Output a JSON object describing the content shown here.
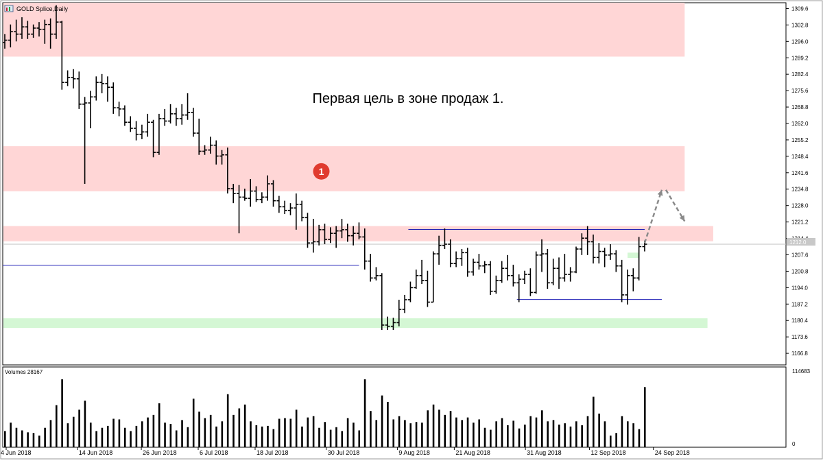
{
  "title": "GOLD Splice,Daily",
  "annotation": "Первая цель в зоне продаж 1.",
  "marker_label": "1",
  "current_price_label": "1212.0",
  "volume_label": "Volumes 28167",
  "volume_axis_labels": [
    "114683",
    "0"
  ],
  "colors": {
    "up_down_bar": "#000000",
    "sell_zone": "#ffd6d6",
    "buy_zone": "#d4f7d4",
    "level_line": "#1f1fb4",
    "marker": "#e03b2f",
    "arrow": "#8a8a8a",
    "grid_price_line": "#c0c0c0"
  },
  "chart_data": {
    "type": "ohlc",
    "title": "GOLD Splice,Daily",
    "price_axis": {
      "ylim": [
        1162.0,
        1312.0
      ],
      "ticks": [
        1309.6,
        1302.8,
        1296.0,
        1289.2,
        1282.4,
        1275.6,
        1268.8,
        1262.0,
        1255.2,
        1248.4,
        1241.6,
        1234.8,
        1228.0,
        1221.2,
        1214.4,
        1207.6,
        1200.8,
        1194.0,
        1187.2,
        1180.4,
        1173.6,
        1166.8
      ]
    },
    "x_labels": [
      "4 Jun 2018",
      "14 Jun 2018",
      "26 Jun 2018",
      "6 Jul 2018",
      "18 Jul 2018",
      "30 Jul 2018",
      "9 Aug 2018",
      "21 Aug 2018",
      "31 Aug 2018",
      "12 Sep 2018",
      "24 Sep 2018"
    ],
    "bars": [
      {
        "o": 1295.5,
        "h": 1299.0,
        "l": 1293.0,
        "c": 1296.5,
        "v": 25
      },
      {
        "o": 1296.5,
        "h": 1303.0,
        "l": 1293.5,
        "c": 1300.0,
        "v": 38
      },
      {
        "o": 1300.0,
        "h": 1305.0,
        "l": 1296.0,
        "c": 1299.0,
        "v": 30
      },
      {
        "o": 1299.0,
        "h": 1306.0,
        "l": 1297.0,
        "c": 1302.0,
        "v": 26
      },
      {
        "o": 1302.0,
        "h": 1304.5,
        "l": 1297.0,
        "c": 1299.0,
        "v": 23
      },
      {
        "o": 1299.0,
        "h": 1303.0,
        "l": 1297.5,
        "c": 1301.5,
        "v": 22
      },
      {
        "o": 1301.5,
        "h": 1304.0,
        "l": 1298.0,
        "c": 1301.0,
        "v": 18
      },
      {
        "o": 1301.0,
        "h": 1305.0,
        "l": 1295.0,
        "c": 1303.0,
        "v": 30
      },
      {
        "o": 1303.0,
        "h": 1305.5,
        "l": 1293.0,
        "c": 1299.0,
        "v": 42
      },
      {
        "o": 1299.0,
        "h": 1311.0,
        "l": 1297.0,
        "c": 1304.0,
        "v": 65
      },
      {
        "o": 1304.0,
        "h": 1304.5,
        "l": 1276.0,
        "c": 1279.0,
        "v": 105
      },
      {
        "o": 1279.0,
        "h": 1284.0,
        "l": 1277.5,
        "c": 1281.0,
        "v": 37
      },
      {
        "o": 1281.0,
        "h": 1284.5,
        "l": 1276.5,
        "c": 1280.5,
        "v": 47
      },
      {
        "o": 1280.5,
        "h": 1283.5,
        "l": 1268.0,
        "c": 1270.0,
        "v": 58
      },
      {
        "o": 1270.0,
        "h": 1273.0,
        "l": 1237.0,
        "c": 1270.5,
        "v": 72
      },
      {
        "o": 1270.5,
        "h": 1275.5,
        "l": 1260.0,
        "c": 1273.0,
        "v": 38
      },
      {
        "o": 1273.0,
        "h": 1281.5,
        "l": 1271.5,
        "c": 1279.0,
        "v": 25
      },
      {
        "o": 1279.0,
        "h": 1282.5,
        "l": 1274.5,
        "c": 1278.5,
        "v": 30
      },
      {
        "o": 1278.5,
        "h": 1281.5,
        "l": 1271.0,
        "c": 1277.0,
        "v": 33
      },
      {
        "o": 1277.0,
        "h": 1279.0,
        "l": 1266.0,
        "c": 1268.5,
        "v": 44
      },
      {
        "o": 1268.5,
        "h": 1271.0,
        "l": 1265.0,
        "c": 1268.0,
        "v": 43
      },
      {
        "o": 1268.0,
        "h": 1269.5,
        "l": 1261.0,
        "c": 1262.5,
        "v": 30
      },
      {
        "o": 1262.5,
        "h": 1265.0,
        "l": 1258.5,
        "c": 1260.0,
        "v": 25
      },
      {
        "o": 1260.0,
        "h": 1263.0,
        "l": 1255.0,
        "c": 1257.5,
        "v": 33
      },
      {
        "o": 1257.5,
        "h": 1261.5,
        "l": 1255.5,
        "c": 1258.5,
        "v": 40
      },
      {
        "o": 1258.5,
        "h": 1266.0,
        "l": 1256.5,
        "c": 1262.5,
        "v": 46
      },
      {
        "o": 1262.5,
        "h": 1263.5,
        "l": 1248.0,
        "c": 1250.0,
        "v": 50
      },
      {
        "o": 1250.0,
        "h": 1266.0,
        "l": 1249.0,
        "c": 1264.0,
        "v": 68
      },
      {
        "o": 1264.0,
        "h": 1268.0,
        "l": 1261.0,
        "c": 1263.0,
        "v": 38
      },
      {
        "o": 1263.0,
        "h": 1270.0,
        "l": 1262.0,
        "c": 1266.0,
        "v": 36
      },
      {
        "o": 1266.0,
        "h": 1268.5,
        "l": 1261.0,
        "c": 1264.0,
        "v": 26
      },
      {
        "o": 1264.0,
        "h": 1270.0,
        "l": 1261.5,
        "c": 1265.5,
        "v": 42
      },
      {
        "o": 1265.5,
        "h": 1274.5,
        "l": 1263.5,
        "c": 1266.5,
        "v": 31
      },
      {
        "o": 1266.5,
        "h": 1268.5,
        "l": 1256.5,
        "c": 1258.0,
        "v": 75
      },
      {
        "o": 1258.0,
        "h": 1264.0,
        "l": 1249.0,
        "c": 1250.5,
        "v": 55
      },
      {
        "o": 1250.5,
        "h": 1253.0,
        "l": 1249.0,
        "c": 1251.0,
        "v": 45
      },
      {
        "o": 1251.0,
        "h": 1256.5,
        "l": 1249.5,
        "c": 1253.0,
        "v": 50
      },
      {
        "o": 1253.0,
        "h": 1255.0,
        "l": 1245.0,
        "c": 1248.5,
        "v": 32
      },
      {
        "o": 1248.5,
        "h": 1251.0,
        "l": 1245.0,
        "c": 1249.0,
        "v": 40
      },
      {
        "o": 1249.0,
        "h": 1252.0,
        "l": 1233.0,
        "c": 1235.0,
        "v": 82
      },
      {
        "o": 1235.0,
        "h": 1237.0,
        "l": 1229.0,
        "c": 1233.0,
        "v": 50
      },
      {
        "o": 1233.0,
        "h": 1236.5,
        "l": 1216.5,
        "c": 1231.5,
        "v": 60
      },
      {
        "o": 1231.5,
        "h": 1235.0,
        "l": 1230.0,
        "c": 1231.0,
        "v": 66
      },
      {
        "o": 1231.0,
        "h": 1239.0,
        "l": 1227.5,
        "c": 1234.0,
        "v": 40
      },
      {
        "o": 1234.0,
        "h": 1236.0,
        "l": 1229.5,
        "c": 1230.5,
        "v": 34
      },
      {
        "o": 1230.5,
        "h": 1233.5,
        "l": 1229.0,
        "c": 1231.5,
        "v": 32
      },
      {
        "o": 1231.5,
        "h": 1240.5,
        "l": 1230.0,
        "c": 1237.0,
        "v": 33
      },
      {
        "o": 1237.0,
        "h": 1238.5,
        "l": 1227.5,
        "c": 1230.0,
        "v": 28
      },
      {
        "o": 1230.0,
        "h": 1232.0,
        "l": 1225.0,
        "c": 1227.5,
        "v": 44
      },
      {
        "o": 1227.5,
        "h": 1230.0,
        "l": 1224.5,
        "c": 1226.0,
        "v": 45
      },
      {
        "o": 1226.0,
        "h": 1229.0,
        "l": 1224.0,
        "c": 1227.0,
        "v": 44
      },
      {
        "o": 1227.0,
        "h": 1233.0,
        "l": 1218.0,
        "c": 1228.5,
        "v": 58
      },
      {
        "o": 1228.5,
        "h": 1230.0,
        "l": 1221.5,
        "c": 1223.0,
        "v": 32
      },
      {
        "o": 1223.0,
        "h": 1225.0,
        "l": 1210.5,
        "c": 1212.5,
        "v": 46
      },
      {
        "o": 1212.5,
        "h": 1222.5,
        "l": 1208.5,
        "c": 1213.0,
        "v": 48
      },
      {
        "o": 1213.0,
        "h": 1220.0,
        "l": 1211.5,
        "c": 1218.0,
        "v": 30
      },
      {
        "o": 1218.0,
        "h": 1220.5,
        "l": 1212.0,
        "c": 1214.0,
        "v": 39
      },
      {
        "o": 1214.0,
        "h": 1219.0,
        "l": 1212.5,
        "c": 1216.5,
        "v": 27
      },
      {
        "o": 1216.5,
        "h": 1219.5,
        "l": 1210.5,
        "c": 1217.5,
        "v": 31
      },
      {
        "o": 1217.5,
        "h": 1222.5,
        "l": 1214.5,
        "c": 1218.0,
        "v": 25
      },
      {
        "o": 1218.0,
        "h": 1220.5,
        "l": 1213.0,
        "c": 1215.5,
        "v": 45
      },
      {
        "o": 1215.5,
        "h": 1219.5,
        "l": 1211.5,
        "c": 1216.5,
        "v": 38
      },
      {
        "o": 1216.5,
        "h": 1221.0,
        "l": 1214.0,
        "c": 1215.0,
        "v": 26
      },
      {
        "o": 1215.0,
        "h": 1218.5,
        "l": 1201.5,
        "c": 1205.0,
        "v": 105
      },
      {
        "o": 1205.0,
        "h": 1208.0,
        "l": 1196.5,
        "c": 1198.0,
        "v": 56
      },
      {
        "o": 1198.0,
        "h": 1202.5,
        "l": 1197.0,
        "c": 1199.0,
        "v": 42
      },
      {
        "o": 1199.0,
        "h": 1200.0,
        "l": 1176.5,
        "c": 1178.5,
        "v": 80
      },
      {
        "o": 1178.5,
        "h": 1182.0,
        "l": 1176.5,
        "c": 1178.0,
        "v": 70
      },
      {
        "o": 1178.0,
        "h": 1181.5,
        "l": 1176.5,
        "c": 1179.5,
        "v": 43
      },
      {
        "o": 1179.5,
        "h": 1189.0,
        "l": 1178.0,
        "c": 1185.0,
        "v": 48
      },
      {
        "o": 1185.0,
        "h": 1191.0,
        "l": 1183.5,
        "c": 1189.0,
        "v": 42
      },
      {
        "o": 1189.0,
        "h": 1196.5,
        "l": 1188.0,
        "c": 1194.0,
        "v": 37
      },
      {
        "o": 1194.0,
        "h": 1201.5,
        "l": 1193.5,
        "c": 1199.0,
        "v": 39
      },
      {
        "o": 1199.0,
        "h": 1205.5,
        "l": 1195.5,
        "c": 1197.0,
        "v": 38
      },
      {
        "o": 1197.0,
        "h": 1201.0,
        "l": 1186.0,
        "c": 1188.0,
        "v": 57
      },
      {
        "o": 1188.0,
        "h": 1209.0,
        "l": 1188.0,
        "c": 1208.0,
        "v": 66
      },
      {
        "o": 1208.0,
        "h": 1215.5,
        "l": 1203.5,
        "c": 1211.5,
        "v": 58
      },
      {
        "o": 1211.5,
        "h": 1218.5,
        "l": 1210.0,
        "c": 1212.0,
        "v": 50
      },
      {
        "o": 1212.0,
        "h": 1214.0,
        "l": 1202.5,
        "c": 1204.0,
        "v": 56
      },
      {
        "o": 1204.0,
        "h": 1209.0,
        "l": 1202.5,
        "c": 1206.0,
        "v": 46
      },
      {
        "o": 1206.0,
        "h": 1210.0,
        "l": 1203.0,
        "c": 1208.5,
        "v": 42
      },
      {
        "o": 1208.5,
        "h": 1210.5,
        "l": 1198.5,
        "c": 1200.5,
        "v": 46
      },
      {
        "o": 1200.5,
        "h": 1206.0,
        "l": 1199.0,
        "c": 1204.5,
        "v": 38
      },
      {
        "o": 1204.5,
        "h": 1208.0,
        "l": 1201.5,
        "c": 1203.0,
        "v": 43
      },
      {
        "o": 1203.0,
        "h": 1205.0,
        "l": 1200.0,
        "c": 1203.5,
        "v": 30
      },
      {
        "o": 1203.5,
        "h": 1205.0,
        "l": 1191.0,
        "c": 1192.5,
        "v": 27
      },
      {
        "o": 1192.5,
        "h": 1199.0,
        "l": 1191.5,
        "c": 1197.0,
        "v": 40
      },
      {
        "o": 1197.0,
        "h": 1205.0,
        "l": 1196.0,
        "c": 1202.0,
        "v": 45
      },
      {
        "o": 1202.0,
        "h": 1207.5,
        "l": 1197.0,
        "c": 1199.0,
        "v": 34
      },
      {
        "o": 1199.0,
        "h": 1203.5,
        "l": 1194.5,
        "c": 1196.0,
        "v": 41
      },
      {
        "o": 1196.0,
        "h": 1199.5,
        "l": 1188.0,
        "c": 1197.5,
        "v": 29
      },
      {
        "o": 1197.5,
        "h": 1201.0,
        "l": 1195.5,
        "c": 1199.5,
        "v": 35
      },
      {
        "o": 1199.5,
        "h": 1202.0,
        "l": 1190.5,
        "c": 1192.0,
        "v": 48
      },
      {
        "o": 1192.0,
        "h": 1209.0,
        "l": 1191.5,
        "c": 1207.5,
        "v": 46
      },
      {
        "o": 1207.5,
        "h": 1214.0,
        "l": 1200.5,
        "c": 1208.0,
        "v": 57
      },
      {
        "o": 1208.0,
        "h": 1210.0,
        "l": 1193.5,
        "c": 1196.0,
        "v": 40
      },
      {
        "o": 1196.0,
        "h": 1206.0,
        "l": 1195.0,
        "c": 1202.0,
        "v": 42
      },
      {
        "o": 1202.0,
        "h": 1206.5,
        "l": 1193.5,
        "c": 1198.0,
        "v": 35
      },
      {
        "o": 1198.0,
        "h": 1208.0,
        "l": 1196.5,
        "c": 1199.5,
        "v": 37
      },
      {
        "o": 1199.5,
        "h": 1202.5,
        "l": 1196.5,
        "c": 1200.5,
        "v": 32
      },
      {
        "o": 1200.5,
        "h": 1211.0,
        "l": 1200.0,
        "c": 1210.0,
        "v": 40
      },
      {
        "o": 1210.0,
        "h": 1216.5,
        "l": 1207.5,
        "c": 1214.5,
        "v": 34
      },
      {
        "o": 1214.5,
        "h": 1219.5,
        "l": 1207.5,
        "c": 1213.0,
        "v": 48
      },
      {
        "o": 1213.0,
        "h": 1216.0,
        "l": 1204.0,
        "c": 1206.5,
        "v": 78
      },
      {
        "o": 1206.5,
        "h": 1212.5,
        "l": 1204.0,
        "c": 1209.0,
        "v": 52
      },
      {
        "o": 1209.0,
        "h": 1210.5,
        "l": 1202.5,
        "c": 1207.5,
        "v": 40
      },
      {
        "o": 1207.5,
        "h": 1212.0,
        "l": 1205.5,
        "c": 1208.0,
        "v": 18
      },
      {
        "o": 1208.0,
        "h": 1209.5,
        "l": 1200.5,
        "c": 1203.0,
        "v": 22
      },
      {
        "o": 1203.0,
        "h": 1205.5,
        "l": 1188.0,
        "c": 1191.0,
        "v": 48
      },
      {
        "o": 1191.0,
        "h": 1201.5,
        "l": 1187.0,
        "c": 1199.0,
        "v": 40
      },
      {
        "o": 1199.0,
        "h": 1202.0,
        "l": 1192.5,
        "c": 1198.0,
        "v": 37
      },
      {
        "o": 1198.0,
        "h": 1215.0,
        "l": 1197.0,
        "c": 1211.0,
        "v": 28
      },
      {
        "o": 1211.0,
        "h": 1213.5,
        "l": 1209.0,
        "c": 1212.0,
        "v": 93
      }
    ]
  },
  "zones": {
    "sell": [
      {
        "name": "sell-zone-top",
        "from": 1289.7,
        "to": 1312.0,
        "end_bar": 119
      },
      {
        "name": "sell-zone-1",
        "from": 1233.9,
        "to": 1252.6,
        "end_bar": 119
      },
      {
        "name": "sell-zone-near",
        "from": 1213.2,
        "to": 1219.5,
        "end_bar": 124
      }
    ],
    "buy": [
      {
        "name": "buy-zone-main",
        "from": 1177.3,
        "to": 1181.3,
        "end_bar": 123
      },
      {
        "name": "buy-zone-small",
        "from": 1206.3,
        "to": 1208.5,
        "start_bar": 109,
        "end_bar": 111
      }
    ]
  },
  "levels": [
    {
      "name": "level-line-left",
      "price": 1203.3,
      "start_bar": 0,
      "end_bar": 62
    },
    {
      "name": "level-line-top",
      "price": 1218.1,
      "start_bar": 71,
      "end_bar": 112
    },
    {
      "name": "level-line-bottom",
      "price": 1189.1,
      "start_bar": 90,
      "end_bar": 115
    }
  ],
  "arrow": {
    "points": [
      [
        112,
        1212.5
      ],
      [
        115,
        1234.5
      ],
      [
        119,
        1221.5
      ]
    ]
  },
  "marker": {
    "bar": 50,
    "price": 1245.0
  }
}
